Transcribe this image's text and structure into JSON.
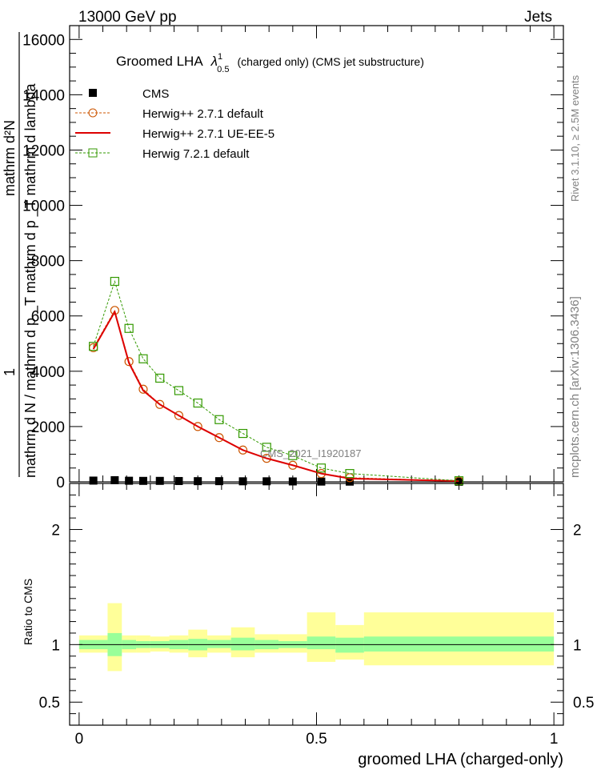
{
  "header": {
    "left": "13000 GeV pp",
    "right": "Jets"
  },
  "side_labels": {
    "rivet": "Rivet 3.1.10, ≥ 2.5M events",
    "mcplots": "mcplots.cern.ch [arXiv:1306.3436]"
  },
  "watermark": "CMS_2021_I1920187",
  "chart_data": {
    "type": "scatter",
    "title": "Groomed LHA",
    "title_symbol": "λ",
    "title_sup": "1",
    "title_sub": "0.5",
    "title_suffix": "(charged only) (CMS jet substructure)",
    "xlabel": "groomed LHA (charged-only)",
    "ylabel_top": "1",
    "ylabel_main": "mathrm d N / mathrm d p _T mathrm d p _T mathrm d lambda",
    "ylabel_numerator": "mathrm d²N",
    "ratio_ylabel": "Ratio to CMS",
    "xlim": [
      -0.02,
      1.02
    ],
    "ylim": [
      0,
      16500
    ],
    "yticks": [
      0,
      2000,
      4000,
      6000,
      8000,
      10000,
      12000,
      14000,
      16000
    ],
    "ytick_labels": [
      "0",
      "2000",
      "4000",
      "6000",
      "8000",
      "10000",
      "12000",
      "14000",
      "16000"
    ],
    "xticks": [
      0,
      0.5,
      1
    ],
    "xtick_labels": [
      "0",
      "0.5",
      "1"
    ],
    "ratio_ylim": [
      0.3,
      2.4
    ],
    "ratio_yticks": [
      0.5,
      1,
      2
    ],
    "ratio_ytick_labels": [
      "0.5",
      "1",
      "2"
    ],
    "legend": [
      "CMS",
      "Herwig++ 2.7.1 default",
      "Herwig++ 2.7.1 UE-EE-5",
      "Herwig 7.2.1 default"
    ],
    "legend_position": "top-left",
    "series": [
      {
        "name": "CMS",
        "style": "square-filled",
        "color": "#000000",
        "x": [
          0.03,
          0.075,
          0.105,
          0.135,
          0.17,
          0.21,
          0.25,
          0.295,
          0.345,
          0.395,
          0.45,
          0.51,
          0.57,
          0.8
        ],
        "y": [
          45,
          60,
          40,
          35,
          35,
          30,
          25,
          25,
          20,
          20,
          15,
          10,
          8,
          3
        ]
      },
      {
        "name": "Herwig++ 2.7.1 default",
        "style": "circle-open-dashed",
        "color": "#cc5500",
        "x": [
          0.03,
          0.075,
          0.105,
          0.135,
          0.17,
          0.21,
          0.25,
          0.295,
          0.345,
          0.395,
          0.45,
          0.51,
          0.57,
          0.8
        ],
        "y": [
          4850,
          6200,
          4350,
          3350,
          2800,
          2400,
          2000,
          1600,
          1150,
          850,
          600,
          300,
          150,
          30
        ]
      },
      {
        "name": "Herwig++ 2.7.1 UE-EE-5",
        "style": "line-solid",
        "color": "#dd0000",
        "x": [
          0.03,
          0.075,
          0.105,
          0.135,
          0.17,
          0.21,
          0.25,
          0.295,
          0.345,
          0.395,
          0.45,
          0.51,
          0.57,
          0.8
        ],
        "y": [
          4800,
          6150,
          4300,
          3300,
          2800,
          2400,
          2000,
          1600,
          1150,
          850,
          600,
          300,
          120,
          30
        ]
      },
      {
        "name": "Herwig 7.2.1 default",
        "style": "square-open-dashed",
        "color": "#339900",
        "x": [
          0.03,
          0.075,
          0.105,
          0.135,
          0.17,
          0.21,
          0.25,
          0.295,
          0.345,
          0.395,
          0.45,
          0.51,
          0.57,
          0.8
        ],
        "y": [
          4900,
          7250,
          5550,
          4450,
          3750,
          3300,
          2850,
          2250,
          1750,
          1250,
          950,
          500,
          300,
          40
        ]
      }
    ],
    "ratio_bands": {
      "edges": [
        0,
        0.06,
        0.09,
        0.12,
        0.15,
        0.19,
        0.23,
        0.27,
        0.32,
        0.37,
        0.42,
        0.48,
        0.54,
        0.6,
        1.0
      ],
      "inner_lo": [
        0.96,
        0.9,
        0.96,
        0.97,
        0.97,
        0.96,
        0.95,
        0.97,
        0.95,
        0.96,
        0.97,
        0.96,
        0.93,
        0.94
      ],
      "inner_hi": [
        1.04,
        1.1,
        1.04,
        1.03,
        1.03,
        1.04,
        1.05,
        1.04,
        1.06,
        1.04,
        1.03,
        1.07,
        1.06,
        1.07
      ],
      "outer_lo": [
        0.93,
        0.77,
        0.93,
        0.93,
        0.94,
        0.93,
        0.89,
        0.93,
        0.89,
        0.93,
        0.93,
        0.85,
        0.87,
        0.82
      ],
      "outer_hi": [
        1.08,
        1.36,
        1.08,
        1.08,
        1.07,
        1.08,
        1.13,
        1.08,
        1.15,
        1.09,
        1.09,
        1.28,
        1.17,
        1.28
      ],
      "inner_color": "#99ff99",
      "outer_color": "#ffff99"
    }
  }
}
